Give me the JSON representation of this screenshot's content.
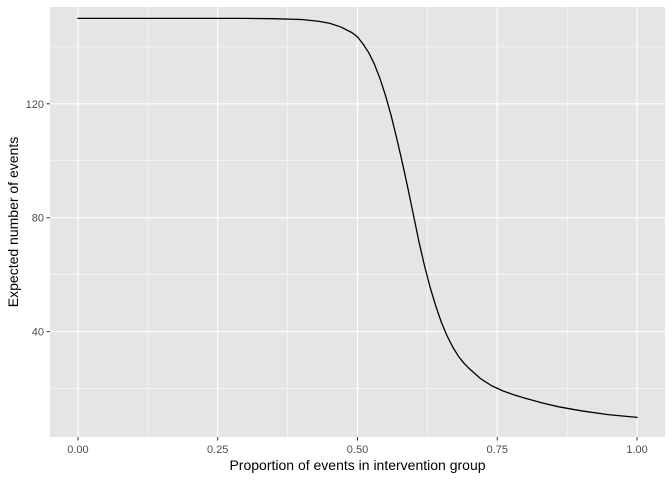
{
  "chart_data": {
    "type": "line",
    "title": "",
    "xlabel": "Proportion of events in intervention group",
    "ylabel": "Expected number of events",
    "xlim": [
      -0.05,
      1.05
    ],
    "ylim": [
      3,
      154
    ],
    "x_ticks": [
      0,
      0.25,
      0.5,
      0.75,
      1
    ],
    "x_tick_labels": [
      "0.00",
      "0.25",
      "0.50",
      "0.75",
      "1.00"
    ],
    "x_minor_ticks": [
      0.125,
      0.375,
      0.625,
      0.875
    ],
    "y_ticks": [
      40,
      80,
      120
    ],
    "y_tick_labels": [
      "40",
      "80",
      "120"
    ],
    "y_minor_ticks": [
      20,
      60,
      100,
      140
    ],
    "grid": true,
    "legend": "none",
    "colors": {
      "panel_background": "#e5e5e5",
      "grid": "#ffffff",
      "line": "#000000",
      "tick_label": "#4d4d4d",
      "tick_mark": "#333333"
    },
    "series": [
      {
        "x": [
          0,
          0.05,
          0.1,
          0.15,
          0.2,
          0.25,
          0.3,
          0.35,
          0.4,
          0.43,
          0.45,
          0.47,
          0.49,
          0.5,
          0.51,
          0.52,
          0.53,
          0.54,
          0.55,
          0.56,
          0.57,
          0.58,
          0.59,
          0.6,
          0.61,
          0.62,
          0.63,
          0.64,
          0.65,
          0.66,
          0.67,
          0.68,
          0.69,
          0.7,
          0.72,
          0.74,
          0.76,
          0.78,
          0.8,
          0.83,
          0.86,
          0.9,
          0.95,
          1
        ],
        "values": [
          150,
          150,
          150,
          150,
          150,
          150,
          150,
          149.9,
          149.6,
          149,
          148.3,
          147,
          145,
          143.5,
          141,
          138,
          134,
          129,
          123,
          116,
          108,
          99.5,
          90.5,
          81,
          71.5,
          63,
          55.5,
          49,
          43.3,
          38.6,
          34.7,
          31.5,
          29,
          27,
          23.5,
          21,
          19.2,
          17.8,
          16.6,
          15,
          13.6,
          12.2,
          10.8,
          9.9
        ]
      }
    ]
  }
}
